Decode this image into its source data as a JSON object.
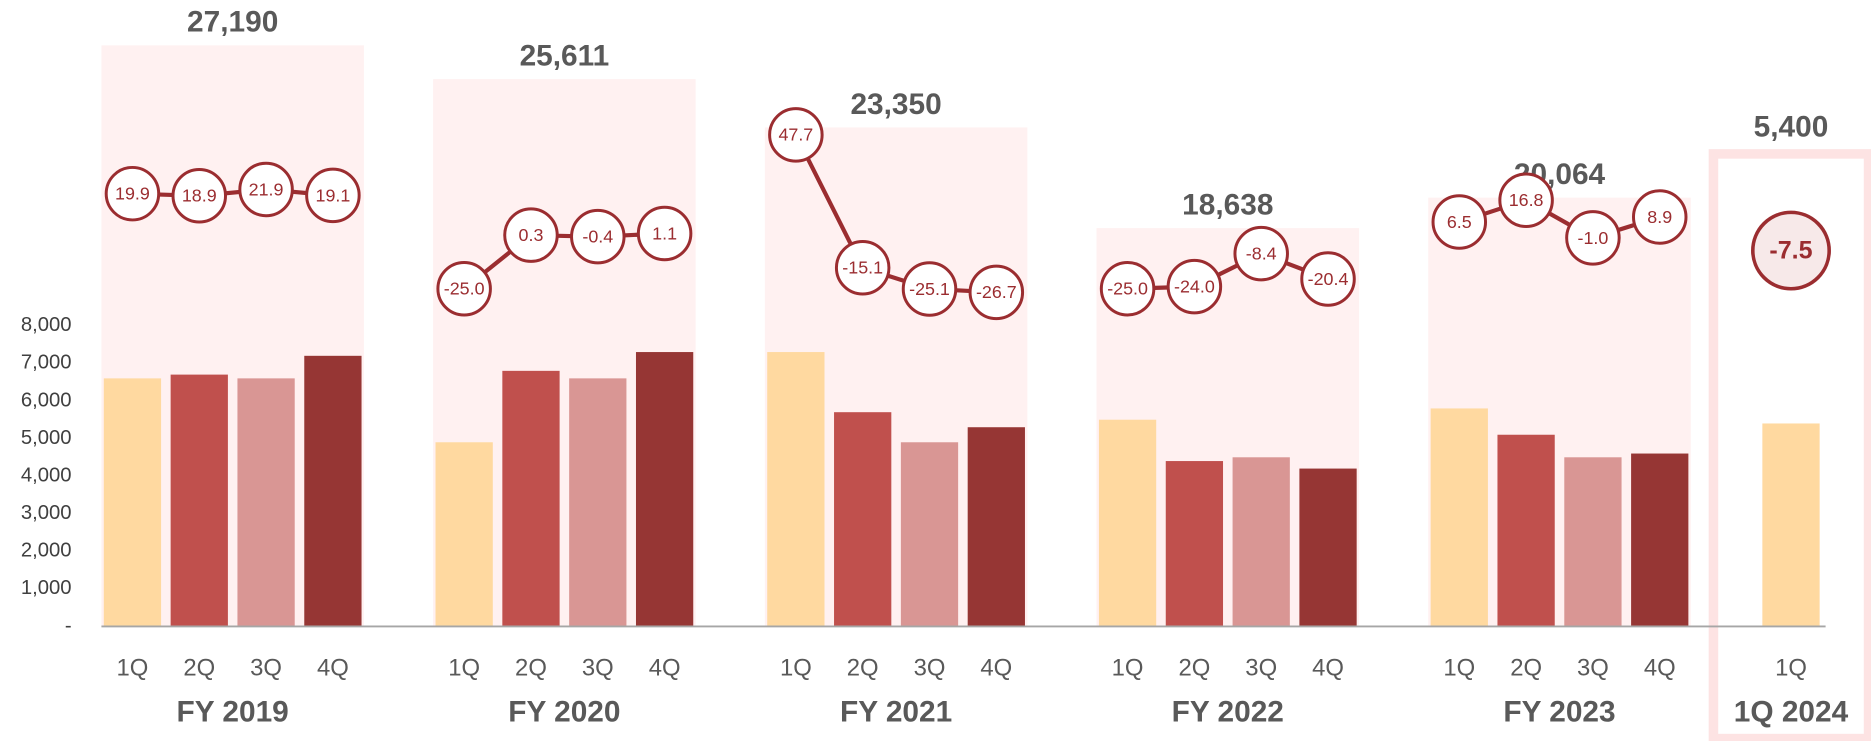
{
  "chart_data": {
    "type": "bar",
    "colors": [
      "#ffd9a0",
      "#c0504d",
      "#d99694",
      "#963634"
    ],
    "line_color": "#9b2d30",
    "panel_color": "#fff1f1",
    "ylim": [
      0,
      8000
    ],
    "yticks": [
      {
        "value": 0,
        "label": "-"
      },
      {
        "value": 1000,
        "label": "1,000"
      },
      {
        "value": 2000,
        "label": "2,000"
      },
      {
        "value": 3000,
        "label": "3,000"
      },
      {
        "value": 4000,
        "label": "4,000"
      },
      {
        "value": 5000,
        "label": "5,000"
      },
      {
        "value": 6000,
        "label": "6,000"
      },
      {
        "value": 7000,
        "label": "7,000"
      },
      {
        "value": 8000,
        "label": "8,000"
      }
    ],
    "groups": [
      {
        "label": "FY 2019",
        "total": 27190,
        "total_label": "27,190",
        "categories": [
          "1Q",
          "2Q",
          "3Q",
          "4Q"
        ],
        "values": [
          6600,
          6700,
          6600,
          7200
        ],
        "growth": [
          19.9,
          18.9,
          21.9,
          19.1
        ]
      },
      {
        "label": "FY 2020",
        "total": 25611,
        "total_label": "25,611",
        "categories": [
          "1Q",
          "2Q",
          "3Q",
          "4Q"
        ],
        "values": [
          4900,
          6800,
          6600,
          7300
        ],
        "growth": [
          -25,
          0.3,
          -0.4,
          1.1
        ],
        "growth_labels": [
          "-25.0",
          "0.3",
          "-0.4",
          "1.1"
        ]
      },
      {
        "label": "FY 2021",
        "total": 23350,
        "total_label": "23,350",
        "categories": [
          "1Q",
          "2Q",
          "3Q",
          "4Q"
        ],
        "values": [
          7300,
          5700,
          4900,
          5300
        ],
        "growth": [
          47.7,
          -15.1,
          -25.1,
          -26.7
        ]
      },
      {
        "label": "FY 2022",
        "total": 18638,
        "total_label": "18,638",
        "categories": [
          "1Q",
          "2Q",
          "3Q",
          "4Q"
        ],
        "values": [
          5500,
          4400,
          4500,
          4200
        ],
        "growth": [
          -25,
          -24,
          -8.4,
          -20.4
        ],
        "growth_labels": [
          "-25.0",
          "-24.0",
          "-8.4",
          "-20.4"
        ]
      },
      {
        "label": "FY 2023",
        "total": 20064,
        "total_label": "20,064",
        "categories": [
          "1Q",
          "2Q",
          "3Q",
          "4Q"
        ],
        "values": [
          5800,
          5100,
          4500,
          4600
        ],
        "growth": [
          6.5,
          16.8,
          -1,
          8.9
        ],
        "growth_labels": [
          "6.5",
          "16.8",
          "-1.0",
          "8.9"
        ]
      },
      {
        "label": "1Q 2024",
        "total": 5400,
        "total_label": "5,400",
        "highlight": true,
        "categories": [
          "1Q"
        ],
        "values": [
          5400
        ],
        "growth": [
          -7.5
        ]
      }
    ]
  }
}
